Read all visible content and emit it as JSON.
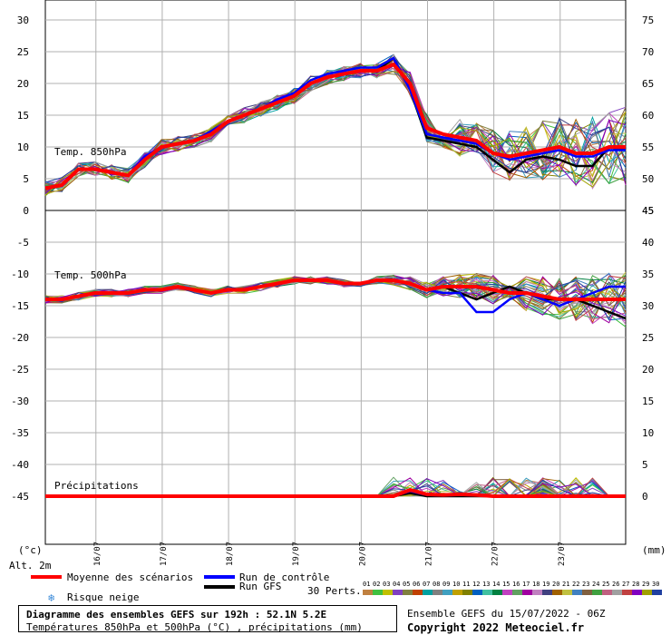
{
  "chart_data": {
    "type": "line",
    "panels": [
      {
        "name": "Temp. 850hPa",
        "ylim": [
          0,
          30
        ],
        "yticks": [
          "0",
          "5",
          "10",
          "15",
          "20",
          "25",
          "30"
        ],
        "right_ticks": [
          "45",
          "50",
          "55",
          "60",
          "65",
          "70",
          "75"
        ],
        "mean": [
          3.5,
          4,
          6.5,
          6.5,
          6,
          5.5,
          8,
          10,
          10.5,
          11,
          12,
          14,
          15,
          16,
          17,
          18,
          20,
          21,
          21.5,
          22,
          22,
          23,
          20,
          13,
          12,
          11.5,
          11,
          9,
          8.5,
          9,
          9.5,
          10,
          9,
          9,
          10,
          10
        ],
        "control": [
          3.5,
          4,
          6.5,
          6.5,
          6,
          5.5,
          8.5,
          10,
          10.5,
          11,
          12.5,
          14,
          15,
          16,
          17.5,
          18.5,
          20.5,
          21.5,
          22,
          22.5,
          22.5,
          24,
          19,
          12,
          11.5,
          11,
          10.5,
          9,
          8,
          8.5,
          9,
          9.5,
          8.5,
          8.5,
          9.5,
          9.5
        ],
        "gfs": [
          3.5,
          4,
          6.5,
          6.5,
          6,
          5.5,
          8,
          10,
          10.5,
          11,
          12,
          14,
          15,
          16,
          17,
          18,
          20,
          21,
          21.5,
          22,
          22,
          24,
          19,
          11.5,
          11,
          10.5,
          10,
          8,
          6,
          8,
          8.5,
          8,
          7,
          7,
          10,
          9.5
        ]
      },
      {
        "name": "Temp. 500hPa",
        "ylim": [
          -50,
          0
        ],
        "yticks": [
          "0",
          "-5",
          "-10",
          "-15",
          "-20",
          "-25",
          "-30",
          "-35",
          "-40",
          "-45"
        ],
        "right_ticks": [
          "45",
          "40",
          "35",
          "30",
          "25",
          "20",
          "15",
          "10",
          "5",
          "0"
        ],
        "mean": [
          -14,
          -14,
          -13.5,
          -13,
          -13,
          -13,
          -12.5,
          -12.5,
          -12,
          -12.5,
          -13,
          -12.5,
          -12.5,
          -12,
          -11.5,
          -11,
          -11,
          -11,
          -11.5,
          -11.5,
          -11,
          -11,
          -11.5,
          -12.5,
          -12,
          -12,
          -12,
          -12.5,
          -13,
          -13,
          -13.5,
          -14,
          -14,
          -14,
          -14,
          -14
        ],
        "control": [
          -14,
          -14,
          -13.5,
          -13,
          -13,
          -13,
          -12.5,
          -12.5,
          -12,
          -12.5,
          -13,
          -12.5,
          -12.5,
          -12,
          -11.5,
          -11,
          -11,
          -11,
          -11.5,
          -11.5,
          -11,
          -11,
          -11.5,
          -12.5,
          -13,
          -13,
          -16,
          -16,
          -14,
          -13,
          -14,
          -15,
          -14,
          -13,
          -12,
          -12
        ],
        "gfs": [
          -14,
          -14,
          -13.5,
          -13,
          -13,
          -13,
          -12.5,
          -12.5,
          -12,
          -12.5,
          -13,
          -12.5,
          -12.5,
          -12,
          -11.5,
          -11,
          -11,
          -11,
          -11.5,
          -11.5,
          -11,
          -11,
          -11.5,
          -12.5,
          -12,
          -13,
          -14,
          -13,
          -12,
          -13,
          -14,
          -14,
          -14,
          -15,
          -16,
          -17
        ]
      }
    ],
    "precip": {
      "name": "Précipitations",
      "mean": [
        0,
        0,
        0,
        0,
        0,
        0,
        0,
        0,
        0,
        0,
        0,
        0,
        0,
        0,
        0,
        0,
        0,
        0,
        0,
        0,
        0,
        0,
        1,
        0.3,
        0.2,
        0.3,
        0.2,
        0,
        0,
        0,
        0,
        0,
        0,
        0,
        0,
        0
      ],
      "control": [
        0,
        0,
        0,
        0,
        0,
        0,
        0,
        0,
        0,
        0,
        0,
        0,
        0,
        0,
        0,
        0,
        0,
        0,
        0,
        0,
        0,
        0,
        0.8,
        0.2,
        0.1,
        0.2,
        0.1,
        0,
        0,
        0,
        0,
        0,
        0,
        0,
        0,
        0
      ],
      "gfs": [
        0,
        0,
        0,
        0,
        0,
        0,
        0,
        0,
        0,
        0,
        0,
        0,
        0,
        0,
        0,
        0,
        0,
        0,
        0,
        0,
        0,
        0,
        0.5,
        0,
        0,
        0,
        0,
        0,
        0,
        0,
        0,
        0,
        0,
        0,
        0,
        0
      ]
    },
    "x_labels": [
      "16/07",
      "17/07",
      "18/07",
      "19/07",
      "20/07",
      "21/07",
      "22/07",
      "23/07"
    ],
    "axis_units_left": "(°c)",
    "axis_units_right": "(mm)",
    "alt_label": "Alt. 2m",
    "colors": {
      "mean": "#ff0000",
      "control": "#0000ff",
      "gfs": "#000000",
      "grid": "#b0b0b0"
    }
  },
  "legend": {
    "mean": "Moyenne des scénarios",
    "control": "Run de contrôle",
    "gfs": "Run GFS",
    "snow": "Risque neige",
    "perts_title": "30 Perts.",
    "pert_numbers": [
      "01",
      "02",
      "03",
      "04",
      "05",
      "06",
      "07",
      "08",
      "09",
      "10",
      "11",
      "12",
      "13",
      "14",
      "15",
      "16",
      "17",
      "18",
      "19",
      "20",
      "21",
      "22",
      "23",
      "24",
      "25",
      "26",
      "27",
      "28",
      "29",
      "30"
    ],
    "pert_colors": [
      "#c08040",
      "#40c040",
      "#c0c000",
      "#8040c0",
      "#808040",
      "#c04000",
      "#00a0a0",
      "#808080",
      "#40a0c0",
      "#c0a000",
      "#808000",
      "#0060c0",
      "#40c0a0",
      "#008040",
      "#c040c0",
      "#60a060",
      "#a000a0",
      "#c080c0",
      "#404080",
      "#a06000",
      "#c0c040",
      "#4080c0",
      "#806040",
      "#40a040",
      "#c06080",
      "#a0a0a0",
      "#c04040",
      "#8000c0",
      "#a0a000",
      "#2040a0"
    ]
  },
  "title": {
    "line1": "Diagramme des ensembles GEFS sur 192h : 52.1N 5.2E",
    "line2": "Températures 850hPa et 500hPa (°C) , précipitations (mm)"
  },
  "footer": {
    "run": "Ensemble GEFS du 15/07/2022 - 06Z",
    "copyright": "Copyright 2022 Meteociel.fr"
  }
}
